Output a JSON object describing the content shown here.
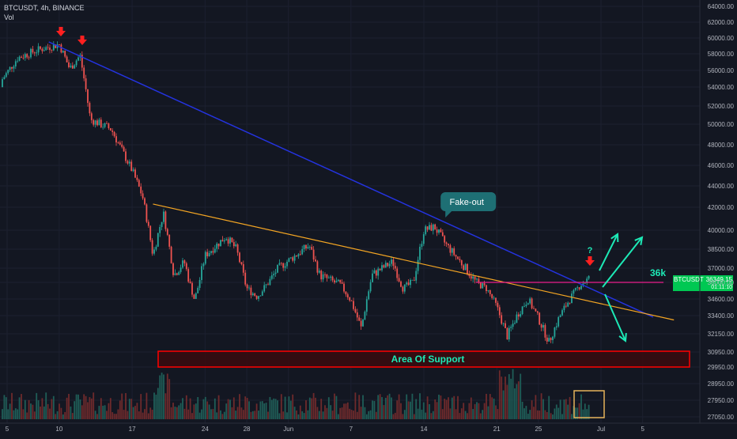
{
  "header": {
    "symbol": "BTCUSDT, 4h, BINANCE",
    "volume_label": "Vol"
  },
  "colors": {
    "background": "#131722",
    "up": "#26a69a",
    "down": "#ef5350",
    "up_volume": "#1f5d57",
    "down_volume": "#6e2a2c",
    "trendline_blue": "#2433e0",
    "trendline_orange": "#f5a623",
    "resistance_line": "#e91e8c",
    "support_box": "#ff0000",
    "support_fill": "#3a0a0e",
    "label_teal": "#1e6f74",
    "arrow_red": "#ff2020",
    "arrow_cyan": "#1de9b6",
    "price_badge": "#00c853",
    "volume_box": "#e6b35a"
  },
  "chart_data": {
    "type": "candlestick",
    "title": "BTCUSDT, 4h, BINANCE",
    "ylim": [
      27050,
      64000
    ],
    "y_axis_labels": [
      "64000.00",
      "62000.00",
      "60000.00",
      "58000.00",
      "56000.00",
      "54000.00",
      "52000.00",
      "50000.00",
      "48000.00",
      "46000.00",
      "44000.00",
      "42000.00",
      "40000.00",
      "38500.00",
      "37000.00",
      "36000.00",
      "34600.00",
      "33400.00",
      "32150.00",
      "30950.00",
      "29950.00",
      "28950.00",
      "27950.00",
      "27050.00"
    ],
    "x_axis_labels": [
      "5",
      "10",
      "17",
      "24",
      "28",
      "Jun",
      "7",
      "14",
      "21",
      "25",
      "Jul",
      "5"
    ],
    "price_path": [
      {
        "date": "2021-05-04",
        "close": 54000
      },
      {
        "date": "2021-05-06",
        "close": 57500
      },
      {
        "date": "2021-05-08",
        "close": 58500
      },
      {
        "date": "2021-05-10",
        "close": 59200
      },
      {
        "date": "2021-05-11",
        "close": 56200
      },
      {
        "date": "2021-05-12",
        "close": 57800
      },
      {
        "date": "2021-05-13",
        "close": 50500
      },
      {
        "date": "2021-05-15",
        "close": 49500
      },
      {
        "date": "2021-05-17",
        "close": 45500
      },
      {
        "date": "2021-05-18",
        "close": 43000
      },
      {
        "date": "2021-05-19",
        "close": 38000
      },
      {
        "date": "2021-05-20",
        "close": 41500
      },
      {
        "date": "2021-05-21",
        "close": 36500
      },
      {
        "date": "2021-05-22",
        "close": 37500
      },
      {
        "date": "2021-05-23",
        "close": 34500
      },
      {
        "date": "2021-05-24",
        "close": 38000
      },
      {
        "date": "2021-05-26",
        "close": 39500
      },
      {
        "date": "2021-05-27",
        "close": 38500
      },
      {
        "date": "2021-05-28",
        "close": 35500
      },
      {
        "date": "2021-05-29",
        "close": 34800
      },
      {
        "date": "2021-05-31",
        "close": 37000
      },
      {
        "date": "2021-06-03",
        "close": 38800
      },
      {
        "date": "2021-06-04",
        "close": 36500
      },
      {
        "date": "2021-06-06",
        "close": 35800
      },
      {
        "date": "2021-06-07",
        "close": 34500
      },
      {
        "date": "2021-06-08",
        "close": 32500
      },
      {
        "date": "2021-06-09",
        "close": 36500
      },
      {
        "date": "2021-06-11",
        "close": 37500
      },
      {
        "date": "2021-06-12",
        "close": 35500
      },
      {
        "date": "2021-06-13",
        "close": 36000
      },
      {
        "date": "2021-06-14",
        "close": 40000
      },
      {
        "date": "2021-06-15",
        "close": 40300
      },
      {
        "date": "2021-06-16",
        "close": 39000
      },
      {
        "date": "2021-06-17",
        "close": 38000
      },
      {
        "date": "2021-06-19",
        "close": 36000
      },
      {
        "date": "2021-06-20",
        "close": 35500
      },
      {
        "date": "2021-06-21",
        "close": 34000
      },
      {
        "date": "2021-06-22",
        "close": 32000
      },
      {
        "date": "2021-06-23",
        "close": 33500
      },
      {
        "date": "2021-06-24",
        "close": 34600
      },
      {
        "date": "2021-06-25",
        "close": 33200
      },
      {
        "date": "2021-06-26",
        "close": 31600
      },
      {
        "date": "2021-06-27",
        "close": 33300
      },
      {
        "date": "2021-06-28",
        "close": 34600
      },
      {
        "date": "2021-06-29",
        "close": 35800
      },
      {
        "date": "2021-06-30",
        "close": 36349.15
      }
    ],
    "last_price": "36349.15",
    "last_price_sub": "01:11:10",
    "trendlines": [
      {
        "name": "descending resistance (blue)",
        "from": {
          "date": "2021-05-09",
          "price": 59500
        },
        "to": {
          "date": "2021-07-06",
          "price": 33300
        }
      },
      {
        "name": "descending resistance (orange)",
        "from": {
          "date": "2021-05-19",
          "price": 42300
        },
        "to": {
          "date": "2021-07-08",
          "price": 33100
        }
      },
      {
        "name": "horizontal level 36k",
        "price": 36000,
        "from_date": "2021-06-19",
        "to_date": "2021-07-07"
      }
    ],
    "support_zone": {
      "label": "Area Of Support",
      "low": 29950,
      "high": 31000
    },
    "annotations": [
      {
        "text": "Fake-out",
        "date": "2021-06-15",
        "price": 42000
      },
      {
        "text": "?",
        "date": "2021-06-30",
        "price": 38000
      },
      {
        "text": "36k",
        "date": "2021-07-05",
        "price": 36000
      }
    ],
    "volume": {
      "ylim": [
        0,
        1
      ],
      "label": "Vol"
    }
  }
}
